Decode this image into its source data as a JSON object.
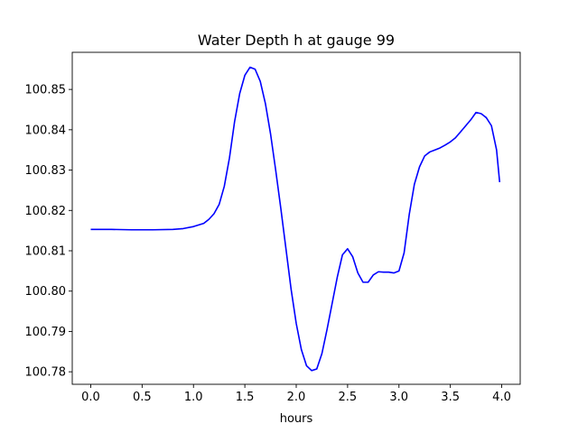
{
  "chart_data": {
    "type": "line",
    "title": "Water Depth h at gauge 99",
    "xlabel": "hours",
    "ylabel": "",
    "xlim": [
      -0.18,
      4.18
    ],
    "ylim": [
      100.7769,
      100.8592
    ],
    "grid": false,
    "x_ticks": [
      0.0,
      0.5,
      1.0,
      1.5,
      2.0,
      2.5,
      3.0,
      3.5,
      4.0
    ],
    "x_tick_labels": [
      "0.0",
      "0.5",
      "1.0",
      "1.5",
      "2.0",
      "2.5",
      "3.0",
      "3.5",
      "4.0"
    ],
    "y_ticks": [
      100.78,
      100.79,
      100.8,
      100.81,
      100.82,
      100.83,
      100.84,
      100.85
    ],
    "y_tick_labels": [
      "100.78",
      "100.79",
      "100.80",
      "100.81",
      "100.82",
      "100.83",
      "100.84",
      "100.85"
    ],
    "series": [
      {
        "color": "#0000ff",
        "x": [
          0.0,
          0.2,
          0.4,
          0.6,
          0.8,
          0.9,
          1.0,
          1.1,
          1.15,
          1.2,
          1.25,
          1.3,
          1.35,
          1.4,
          1.45,
          1.5,
          1.55,
          1.6,
          1.65,
          1.7,
          1.75,
          1.8,
          1.85,
          1.9,
          1.95,
          2.0,
          2.05,
          2.1,
          2.15,
          2.2,
          2.25,
          2.3,
          2.35,
          2.4,
          2.45,
          2.5,
          2.55,
          2.6,
          2.65,
          2.7,
          2.75,
          2.8,
          2.85,
          2.9,
          2.95,
          3.0,
          3.05,
          3.1,
          3.15,
          3.2,
          3.25,
          3.3,
          3.35,
          3.4,
          3.45,
          3.5,
          3.55,
          3.6,
          3.65,
          3.7,
          3.75,
          3.8,
          3.85,
          3.9,
          3.95,
          3.98
        ],
        "y": [
          100.8153,
          100.8153,
          100.8152,
          100.8152,
          100.8153,
          100.8155,
          100.816,
          100.8168,
          100.8178,
          100.8192,
          100.8215,
          100.826,
          100.833,
          100.842,
          100.849,
          100.8535,
          100.8555,
          100.855,
          100.852,
          100.8465,
          100.839,
          100.83,
          100.8205,
          100.8105,
          100.8005,
          100.792,
          100.7855,
          100.7815,
          100.7803,
          100.7807,
          100.7845,
          100.7905,
          100.797,
          100.8035,
          100.809,
          100.8105,
          100.8085,
          100.8045,
          100.8022,
          100.8022,
          100.804,
          100.8048,
          100.8047,
          100.8047,
          100.8045,
          100.805,
          100.8095,
          100.819,
          100.8265,
          100.8308,
          100.8335,
          100.8345,
          100.835,
          100.8355,
          100.8362,
          100.837,
          100.838,
          100.8395,
          100.841,
          100.8425,
          100.8443,
          100.844,
          100.843,
          100.841,
          100.835,
          100.827
        ]
      }
    ]
  }
}
